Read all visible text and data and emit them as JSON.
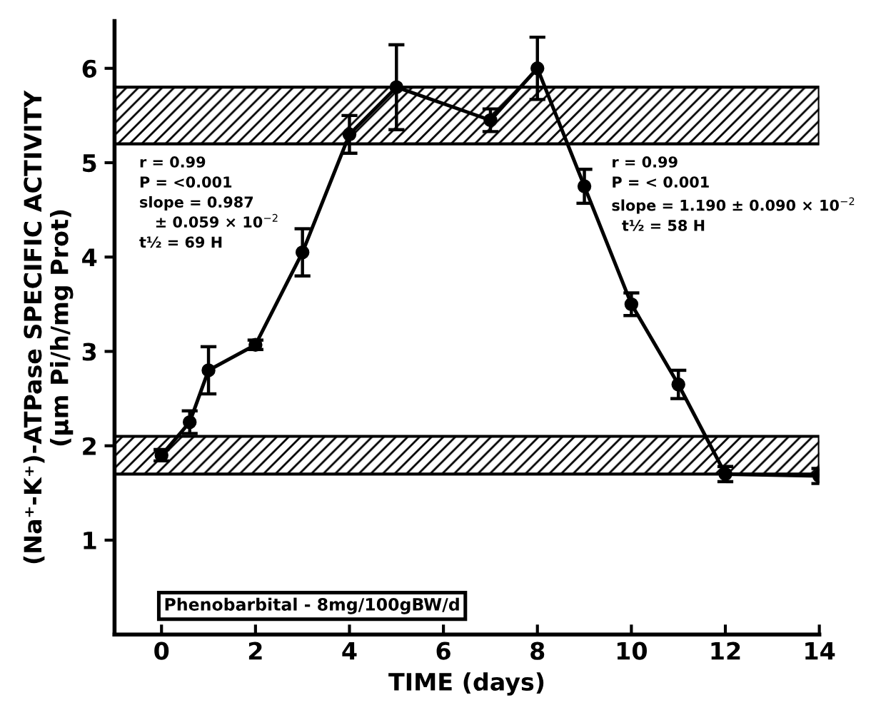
{
  "chart_data": {
    "type": "line",
    "xlabel": "TIME (days)",
    "ylabel": "(Na⁺-K⁺)-ATPase SPECIFIC ACTIVITY\n(μm Pi/h/mg Prot)",
    "x": [
      0,
      0.6,
      1,
      2,
      3,
      4,
      5,
      7,
      8,
      9,
      10,
      11,
      12,
      14
    ],
    "series": [
      {
        "color": "#000000",
        "values": [
          1.9,
          2.25,
          2.8,
          3.07,
          4.05,
          5.3,
          5.8,
          5.45,
          6.0,
          4.75,
          3.5,
          2.65,
          1.7,
          1.68
        ],
        "errors": [
          0.06,
          0.12,
          0.25,
          0.05,
          0.25,
          0.2,
          0.45,
          0.12,
          0.33,
          0.18,
          0.12,
          0.15,
          0.08,
          0.08
        ]
      }
    ],
    "marker": "circle",
    "line_style": "solid",
    "xlim": [
      -1,
      14
    ],
    "ylim": [
      0,
      6.5
    ],
    "xticks": [
      0,
      2,
      4,
      6,
      8,
      10,
      12,
      14
    ],
    "yticks": [
      1,
      2,
      3,
      4,
      5,
      6
    ],
    "grid": false,
    "legend": false,
    "bands": [
      {
        "axis": "y",
        "from": 5.2,
        "to": 5.8,
        "color": "#000000"
      },
      {
        "axis": "y",
        "from": 1.7,
        "to": 2.1,
        "color": "#000000"
      }
    ],
    "annotations": [
      "r = 0.99\nP = <0.001\nslope = 0.987\n   ± 0.059 × 10$^{−2}$\nt½ = 69 H",
      "r = 0.99\nP = < 0.001\nslope = 1.190 ± 0.090 × 10$^{−2}$\n  t½ = 58 H",
      "Phenobarbital - 8mg/100gBW/d"
    ]
  }
}
